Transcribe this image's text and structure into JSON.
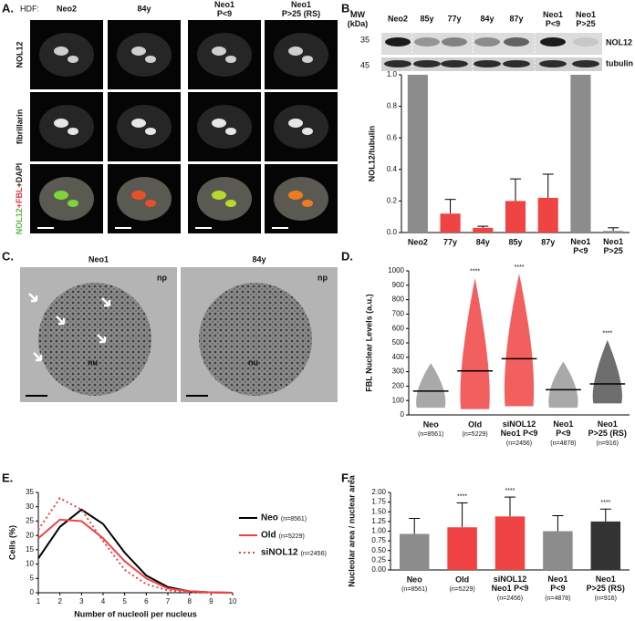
{
  "figure": {
    "panel_a": {
      "label": "A.",
      "prefix": "HDF:",
      "columns": [
        "Neo2",
        "84y",
        [
          "Neo1",
          "P<9"
        ],
        [
          "Neo1",
          "P>25 (RS)"
        ]
      ],
      "rows": [
        "NOL12",
        "fibrillarin",
        [
          "NOL12",
          "+FBL",
          "+DAPI"
        ]
      ],
      "row_label_colors": [
        "#58b947",
        "#e8383d",
        "#222222"
      ]
    },
    "panel_b_blot": {
      "label": "B.",
      "mw_title": [
        "MW",
        "(kDa)"
      ],
      "mw_markers": [
        35,
        45
      ],
      "lanes": [
        "Neo2",
        "85y",
        "77y",
        "84y",
        "87y",
        [
          "Neo1",
          "P<9"
        ],
        [
          "Neo1",
          "P>25"
        ]
      ],
      "bands": [
        "NOL12",
        "tubulin"
      ]
    },
    "panel_c": {
      "label": "C.",
      "images": [
        {
          "title": "Neo1",
          "labels": [
            "np",
            "nu"
          ]
        },
        {
          "title": "84y",
          "labels": [
            "np",
            "nu"
          ]
        }
      ]
    }
  },
  "chart_data": [
    {
      "type": "bar",
      "y_label": "NOL12/tubulin",
      "categories": [
        "Neo2",
        "77y",
        "84y",
        "85y",
        "87y",
        [
          "Neo1",
          "P<9"
        ],
        [
          "Neo1",
          "P>25"
        ]
      ],
      "values": [
        1,
        0.12,
        0.03,
        0.2,
        0.22,
        1,
        0.01
      ],
      "errors": [
        null,
        0.09,
        0.01,
        0.14,
        0.15,
        null,
        0.02
      ],
      "colors": [
        "#8c8c8c",
        "#f04343",
        "#f04343",
        "#f04343",
        "#f04343",
        "#8c8c8c",
        "#8c8c8c"
      ],
      "ylim": [
        0,
        1
      ],
      "yticks": [
        {
          "value": 0,
          "label": "0.0"
        },
        0.2,
        0.4,
        0.6,
        0.8,
        {
          "value": 1,
          "label": "1.0"
        }
      ]
    },
    {
      "type": "strip",
      "panel": "D.",
      "y_label": "FBL Nuclear Levels (a.u.)",
      "categories": [
        "Neo",
        "Old",
        [
          "siNOL12",
          "Neo1 P<9"
        ],
        [
          "Neo1",
          "P<9"
        ],
        [
          "Neo1",
          "P>25 (RS)"
        ]
      ],
      "n_labels": [
        "(n=8561)",
        "(n=5229)",
        "(n=2456)",
        "(n=4878)",
        "(n=916)"
      ],
      "medians": [
        165,
        305,
        390,
        175,
        215
      ],
      "min": [
        50,
        40,
        60,
        50,
        80
      ],
      "max": [
        360,
        950,
        980,
        370,
        520
      ],
      "colors": [
        "#9a9a9a",
        "#f04343",
        "#f04343",
        "#9a9a9a",
        "#555555"
      ],
      "annotations": [
        null,
        "****",
        "****",
        null,
        "****"
      ],
      "ylim": [
        0,
        1000
      ],
      "yticks": [
        0,
        100,
        200,
        300,
        400,
        500,
        600,
        700,
        800,
        900,
        1000
      ]
    },
    {
      "type": "line",
      "panel": "E.",
      "y_label": "Cells (%)",
      "x_label": "Number of nucleoli per nucleus",
      "x": [
        1,
        2,
        3,
        4,
        5,
        6,
        7,
        8,
        9,
        10
      ],
      "series": [
        {
          "name": "Neo",
          "n_label": "(n=8561)",
          "color": "#000000",
          "style": "solid",
          "values": [
            12,
            23,
            29,
            24,
            14,
            6,
            2,
            0.5,
            0.1,
            0
          ]
        },
        {
          "name": "Old",
          "n_label": "(n=5229)",
          "color": "#f04343",
          "style": "solid",
          "values": [
            19,
            25.5,
            25,
            19,
            11,
            5,
            1.5,
            0.5,
            0.1,
            0
          ]
        },
        {
          "name": "siNOL12",
          "n_label": "(n=2456)",
          "color": "#f04343",
          "style": "dotted",
          "values": [
            22,
            33,
            29,
            18,
            8,
            3,
            0.8,
            0.2,
            0,
            0
          ]
        }
      ],
      "xlim": [
        1,
        10
      ],
      "xticks": [
        1,
        2,
        3,
        4,
        5,
        6,
        7,
        8,
        9,
        10
      ],
      "ylim": [
        0,
        35
      ],
      "yticks": [
        0,
        5,
        10,
        15,
        20,
        25,
        30,
        35
      ]
    },
    {
      "type": "bar",
      "panel": "F.",
      "y_label": "Nucleolar area / nuclear area",
      "categories": [
        "Neo",
        "Old",
        [
          "siNOL12",
          "Neo1 P<9"
        ],
        [
          "Neo1",
          "P<9"
        ],
        [
          "Neo1",
          "P>25 (RS)"
        ]
      ],
      "n_labels": [
        "(n=8561)",
        "(n=5229)",
        "(n=2456)",
        "(n=4878)",
        "(n=916)"
      ],
      "values": [
        0.93,
        1.1,
        1.38,
        1.0,
        1.25
      ],
      "errors": [
        0.4,
        0.63,
        0.5,
        0.4,
        0.32
      ],
      "colors": [
        "#8c8c8c",
        "#f04343",
        "#f04343",
        "#8c8c8c",
        "#333333"
      ],
      "annotations": [
        null,
        "****",
        "****",
        null,
        "****"
      ],
      "ylim": [
        0,
        2
      ],
      "yticks": [
        {
          "value": 0,
          "label": "0.00"
        },
        0.25,
        {
          "value": 0.5,
          "label": "0.50"
        },
        0.75,
        {
          "value": 1,
          "label": "1.00"
        },
        1.25,
        {
          "value": 1.5,
          "label": "1.50"
        },
        1.75,
        {
          "value": 2,
          "label": "2.00"
        }
      ]
    }
  ]
}
